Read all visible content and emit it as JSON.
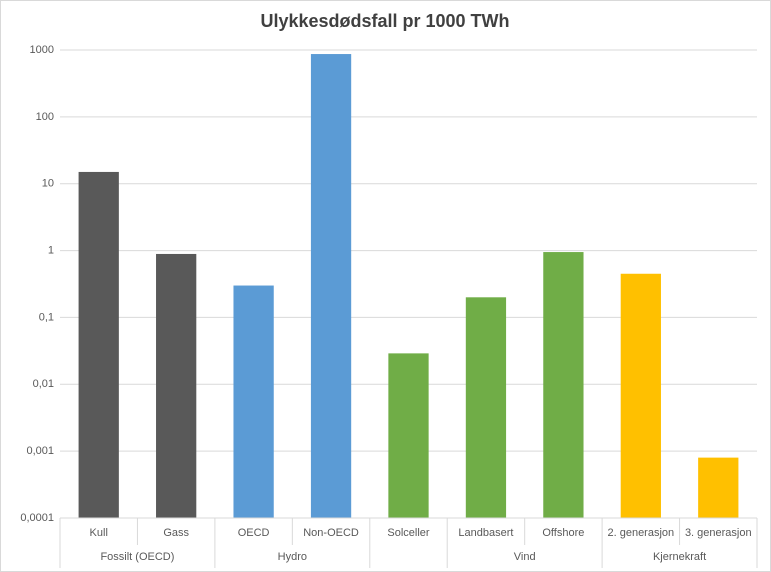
{
  "chart_data": {
    "type": "bar",
    "title": "Ulykkesdødsfall pr 1000 TWh",
    "categories": [
      "Kull",
      "Gass",
      "OECD",
      "Non-OECD",
      "Solceller",
      "Landbasert",
      "Offshore",
      "2. generasjon",
      "3. generasjon"
    ],
    "category_groups": [
      "Fossilt (OECD)",
      "Fossilt (OECD)",
      "Hydro",
      "Hydro",
      null,
      "Vind",
      "Vind",
      "Kjernekraft",
      "Kjernekraft"
    ],
    "values": [
      15,
      0.89,
      0.3,
      870,
      0.029,
      0.2,
      0.95,
      0.45,
      0.0008
    ],
    "colors": [
      "#595959",
      "#595959",
      "#5b9bd5",
      "#5b9bd5",
      "#70ad47",
      "#70ad47",
      "#70ad47",
      "#ffc000",
      "#ffc000"
    ],
    "log_scale": true,
    "ylim": [
      0.0001,
      1000
    ],
    "yticks": [
      1000,
      100,
      10,
      1,
      {
        "value": 0.1,
        "label": "0,1"
      },
      {
        "value": 0.01,
        "label": "0,01"
      },
      {
        "value": 0.001,
        "label": "0,001"
      },
      {
        "value": 0.0001,
        "label": "0,0001"
      }
    ],
    "grid": true
  }
}
